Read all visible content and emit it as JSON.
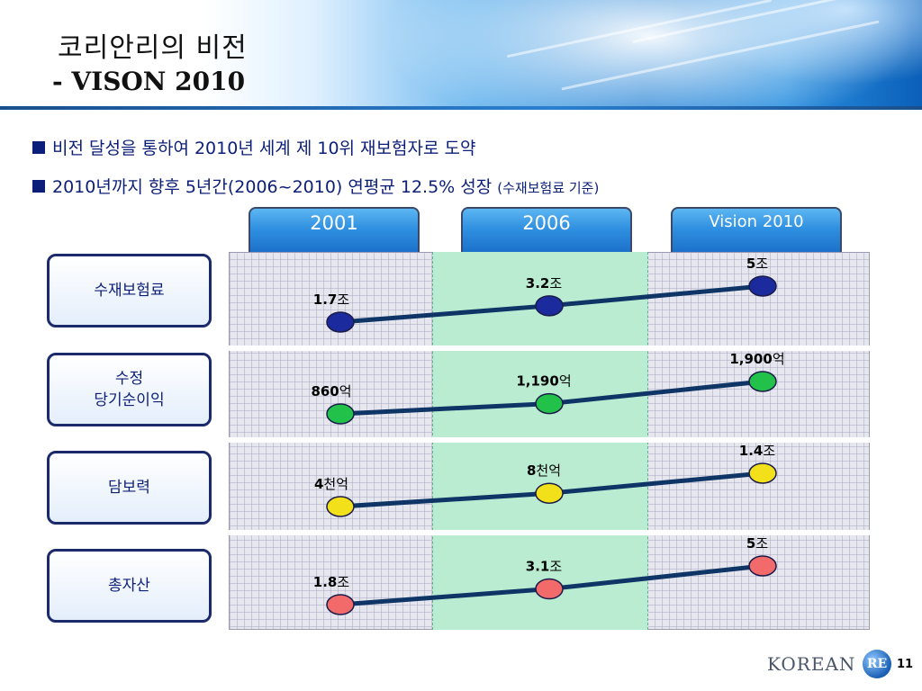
{
  "header": {
    "title_ko": "코리안리의 비전",
    "title_en": "- VISON 2010"
  },
  "bullets": [
    {
      "text": "비전 달성을 통하여 2010년 세계 제 10위 재보험자로 도약",
      "note": ""
    },
    {
      "text": "2010년까지 향후 5년간(2006~2010) 연평균 12.5% 성장",
      "note": "(수재보험료 기준)"
    }
  ],
  "columns": [
    "2001",
    "2006",
    "Vision 2010"
  ],
  "chart_data": {
    "type": "line",
    "categories": [
      "2001",
      "2006",
      "Vision 2010"
    ],
    "series": [
      {
        "name": "수재보험료",
        "label_lines": [
          "수재보험료"
        ],
        "values": [
          1.7,
          3.2,
          5
        ],
        "num_labels": [
          "1.7",
          "3.2",
          "5"
        ],
        "unit_labels": [
          "조",
          "조",
          "조"
        ],
        "color": "#1b2a9c"
      },
      {
        "name": "수정 당기순이익",
        "label_lines": [
          "수정",
          "당기순이익"
        ],
        "values": [
          860,
          1190,
          1900
        ],
        "num_labels": [
          "860",
          "1,190",
          "1,900"
        ],
        "unit_labels": [
          "억",
          "억",
          "억"
        ],
        "color": "#22c24a"
      },
      {
        "name": "담보력",
        "label_lines": [
          "담보력"
        ],
        "values": [
          0.4,
          0.8,
          1.4
        ],
        "num_labels": [
          "4",
          "8",
          "1.4"
        ],
        "unit_labels": [
          "천억",
          "천억",
          "조"
        ],
        "color": "#f2e01a"
      },
      {
        "name": "총자산",
        "label_lines": [
          "총자산"
        ],
        "values": [
          1.8,
          3.1,
          5
        ],
        "num_labels": [
          "1.8",
          "3.1",
          "5"
        ],
        "unit_labels": [
          "조",
          "조",
          "조"
        ],
        "color": "#f26a6a"
      }
    ]
  },
  "footer": {
    "logo_text": "KOREAN",
    "logo_badge": "RE",
    "page_number": "11"
  }
}
